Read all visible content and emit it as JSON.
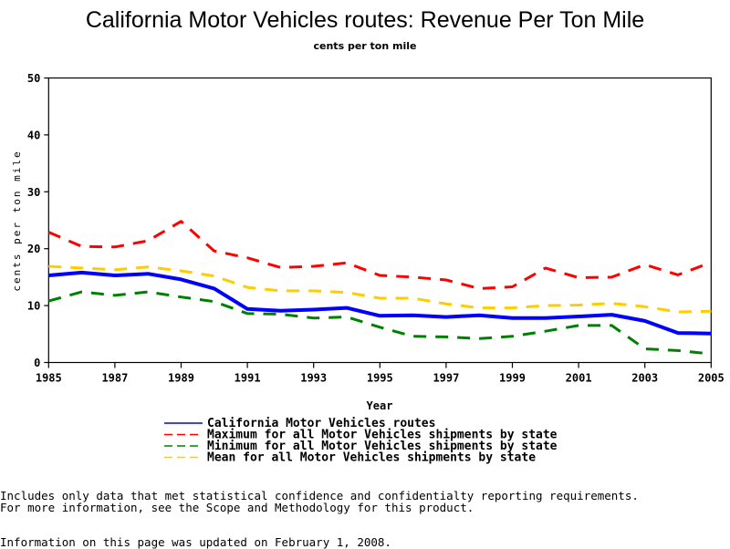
{
  "chart_data": {
    "type": "line",
    "title": "California Motor Vehicles routes: Revenue Per Ton Mile",
    "subtitle": "cents per ton mile",
    "xlabel": "Year",
    "ylabel": "cents per ton mile",
    "xlim": [
      1985,
      2005
    ],
    "ylim": [
      0,
      50
    ],
    "x_ticks": [
      1985,
      1987,
      1989,
      1991,
      1993,
      1995,
      1997,
      1999,
      2001,
      2003,
      2005
    ],
    "y_ticks": [
      0,
      10,
      20,
      30,
      40,
      50
    ],
    "grid": false,
    "legend_position": "bottom",
    "x": [
      1985,
      1986,
      1987,
      1988,
      1989,
      1990,
      1991,
      1992,
      1993,
      1994,
      1995,
      1996,
      1997,
      1998,
      1999,
      2000,
      2001,
      2002,
      2003,
      2004,
      2005
    ],
    "series": [
      {
        "name": "California Motor Vehicles routes",
        "color": "#0000ff",
        "style": "solid",
        "values": [
          15.3,
          15.8,
          15.3,
          15.6,
          14.6,
          13.0,
          9.4,
          9.1,
          9.3,
          9.6,
          8.2,
          8.3,
          8.0,
          8.3,
          7.8,
          7.8,
          8.1,
          8.4,
          7.3,
          5.2,
          5.1
        ]
      },
      {
        "name": "Maximum for all Motor Vehicles shipments by state",
        "color": "#ff0000",
        "style": "dashed",
        "values": [
          22.9,
          20.4,
          20.3,
          21.4,
          24.8,
          19.6,
          18.4,
          16.7,
          16.9,
          17.5,
          15.3,
          15.0,
          14.5,
          13.0,
          13.3,
          16.6,
          14.9,
          15.0,
          17.2,
          15.4,
          17.6
        ]
      },
      {
        "name": "Minimum for all Motor Vehicles shipments by state",
        "color": "#008000",
        "style": "dashed",
        "values": [
          10.8,
          12.4,
          11.8,
          12.4,
          11.5,
          10.7,
          8.6,
          8.5,
          7.8,
          8.0,
          6.2,
          4.6,
          4.5,
          4.2,
          4.6,
          5.5,
          6.5,
          6.5,
          2.4,
          2.1,
          1.5
        ]
      },
      {
        "name": "Mean for all Motor Vehicles shipments by state",
        "color": "#ffcc00",
        "style": "dashed",
        "values": [
          16.9,
          16.6,
          16.3,
          16.8,
          16.1,
          15.2,
          13.2,
          12.6,
          12.6,
          12.3,
          11.3,
          11.3,
          10.3,
          9.6,
          9.6,
          10.0,
          10.1,
          10.4,
          9.8,
          8.9,
          9.0
        ]
      }
    ]
  },
  "footnotes": {
    "line1": "Includes only data that met statistical confidence and confidentialty reporting requirements.",
    "line2": "For more information, see the Scope and Methodology for this product.",
    "updated": "Information on this page was updated on February 1, 2008."
  }
}
